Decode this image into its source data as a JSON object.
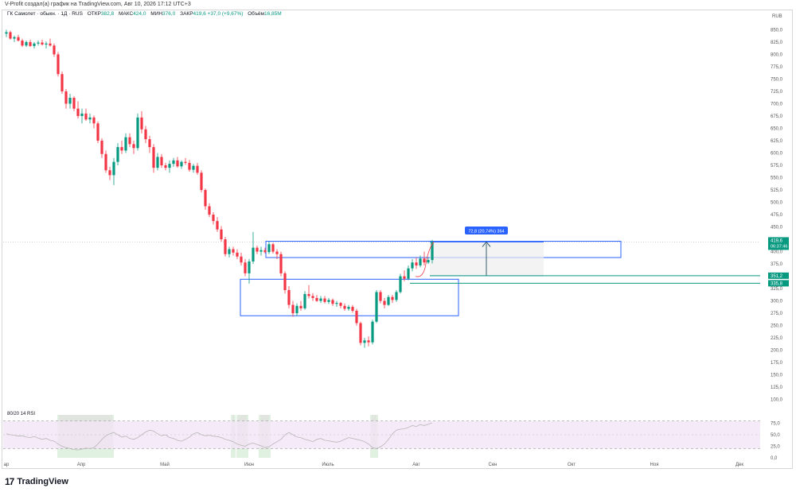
{
  "header": {
    "caption": "V-Profit создал(а) график на TradingView.com, Авг 10, 2026 17:12 UTC+3"
  },
  "legend": {
    "symbol": "ГК Самолет · обыкн. · 1Д · RUS",
    "open_label": "ОТКР",
    "open_value": "382,8",
    "high_label": "МАКС",
    "high_value": "424,0",
    "low_label": "МИН",
    "low_value": "376,0",
    "close_label": "ЗАКР",
    "close_value": "419,6",
    "change": "+37,0 (+9,67%)",
    "volume_label": "Объём",
    "volume_value": "16,85M"
  },
  "rsi": {
    "label": "80/20 14 RSI"
  },
  "branding": {
    "logo_text": "TradingView",
    "logo_mark": "17"
  },
  "colors": {
    "up": "#089981",
    "down": "#f23645",
    "box": "#2962ff",
    "level": "#089981",
    "rsi_band": "#f3e5f5",
    "rsi_line": "#b7b7b7",
    "highlight": "#c8e6c9",
    "ghost": "#e0e0e0"
  },
  "chart_data": {
    "type": "candlestick",
    "currency": "RUB",
    "y_ticks": [
      "850,0",
      "825,0",
      "800,0",
      "775,0",
      "750,0",
      "725,0",
      "700,0",
      "675,0",
      "650,0",
      "625,0",
      "600,0",
      "575,0",
      "550,0",
      "525,0",
      "500,0",
      "475,0",
      "450,0",
      "425,0",
      "400,0",
      "375,0",
      "350,0",
      "325,0",
      "300,0",
      "275,0",
      "250,0",
      "225,0",
      "200,0",
      "175,0",
      "150,0",
      "125,0",
      "100,0"
    ],
    "ylim": [
      85,
      870
    ],
    "x_labels": [
      "ар",
      "Апр",
      "Май",
      "Июн",
      "Июль",
      "Авг",
      "Сен",
      "Окт",
      "Ноя",
      "Дек"
    ],
    "price_labels": [
      {
        "value": 419.6,
        "text": "419,6",
        "sub": "06:37:46",
        "color": "#089981"
      },
      {
        "value": 351.2,
        "text": "351,2",
        "color": "#089981"
      },
      {
        "value": 335.8,
        "text": "335,8",
        "color": "#089981"
      }
    ],
    "measure_label": "72,8 (20,74%) 364",
    "rsi": {
      "ylim": [
        0,
        100
      ],
      "ticks": [
        "75,0",
        "50,0",
        "25,0",
        "0,0"
      ],
      "band": [
        20,
        80
      ],
      "values": [
        52,
        50,
        49,
        47,
        48,
        45,
        44,
        46,
        43,
        40,
        42,
        38,
        36,
        30,
        25,
        22,
        20,
        18,
        17,
        19,
        21,
        20,
        22,
        30,
        40,
        48,
        52,
        55,
        50,
        45,
        47,
        42,
        40,
        44,
        50,
        56,
        60,
        58,
        52,
        48,
        50,
        44,
        42,
        38,
        36,
        40,
        45,
        52,
        55,
        50,
        48,
        49,
        47,
        46,
        44,
        40,
        38,
        35,
        30,
        27,
        25,
        30,
        32,
        29,
        26,
        22,
        24,
        30,
        35,
        40,
        50,
        55,
        50,
        45,
        44,
        40,
        38,
        35,
        40,
        42,
        38,
        37,
        35,
        34,
        36,
        40,
        44,
        42,
        40,
        38,
        35,
        30,
        22,
        20,
        24,
        30,
        40,
        52,
        60,
        62,
        63,
        66,
        70,
        68,
        72,
        70,
        73,
        76
      ]
    },
    "series": [
      {
        "o": 842,
        "h": 850,
        "l": 835,
        "c": 845
      },
      {
        "o": 845,
        "h": 848,
        "l": 830,
        "c": 832
      },
      {
        "o": 832,
        "h": 838,
        "l": 825,
        "c": 835
      },
      {
        "o": 835,
        "h": 840,
        "l": 826,
        "c": 828
      },
      {
        "o": 828,
        "h": 832,
        "l": 815,
        "c": 818
      },
      {
        "o": 818,
        "h": 828,
        "l": 815,
        "c": 825
      },
      {
        "o": 825,
        "h": 830,
        "l": 815,
        "c": 817
      },
      {
        "o": 817,
        "h": 825,
        "l": 812,
        "c": 822
      },
      {
        "o": 822,
        "h": 828,
        "l": 818,
        "c": 824
      },
      {
        "o": 824,
        "h": 830,
        "l": 818,
        "c": 820
      },
      {
        "o": 820,
        "h": 826,
        "l": 812,
        "c": 822
      },
      {
        "o": 822,
        "h": 832,
        "l": 816,
        "c": 818
      },
      {
        "o": 818,
        "h": 822,
        "l": 795,
        "c": 800
      },
      {
        "o": 800,
        "h": 805,
        "l": 755,
        "c": 760
      },
      {
        "o": 760,
        "h": 765,
        "l": 720,
        "c": 725
      },
      {
        "o": 725,
        "h": 730,
        "l": 690,
        "c": 700
      },
      {
        "o": 700,
        "h": 720,
        "l": 690,
        "c": 712
      },
      {
        "o": 712,
        "h": 715,
        "l": 685,
        "c": 690
      },
      {
        "o": 690,
        "h": 705,
        "l": 670,
        "c": 675
      },
      {
        "o": 675,
        "h": 690,
        "l": 660,
        "c": 680
      },
      {
        "o": 680,
        "h": 690,
        "l": 665,
        "c": 668
      },
      {
        "o": 668,
        "h": 680,
        "l": 660,
        "c": 672
      },
      {
        "o": 672,
        "h": 676,
        "l": 650,
        "c": 660
      },
      {
        "o": 660,
        "h": 664,
        "l": 620,
        "c": 625
      },
      {
        "o": 625,
        "h": 630,
        "l": 590,
        "c": 598
      },
      {
        "o": 598,
        "h": 605,
        "l": 560,
        "c": 565
      },
      {
        "o": 565,
        "h": 572,
        "l": 545,
        "c": 555
      },
      {
        "o": 555,
        "h": 590,
        "l": 535,
        "c": 582
      },
      {
        "o": 582,
        "h": 620,
        "l": 575,
        "c": 612
      },
      {
        "o": 612,
        "h": 625,
        "l": 598,
        "c": 605
      },
      {
        "o": 605,
        "h": 640,
        "l": 600,
        "c": 632
      },
      {
        "o": 632,
        "h": 640,
        "l": 612,
        "c": 618
      },
      {
        "o": 618,
        "h": 625,
        "l": 598,
        "c": 610
      },
      {
        "o": 610,
        "h": 680,
        "l": 605,
        "c": 672
      },
      {
        "o": 672,
        "h": 685,
        "l": 640,
        "c": 648
      },
      {
        "o": 648,
        "h": 655,
        "l": 620,
        "c": 628
      },
      {
        "o": 628,
        "h": 635,
        "l": 600,
        "c": 612
      },
      {
        "o": 612,
        "h": 618,
        "l": 560,
        "c": 570
      },
      {
        "o": 570,
        "h": 600,
        "l": 565,
        "c": 592
      },
      {
        "o": 592,
        "h": 598,
        "l": 570,
        "c": 575
      },
      {
        "o": 575,
        "h": 580,
        "l": 565,
        "c": 570
      },
      {
        "o": 570,
        "h": 585,
        "l": 560,
        "c": 578
      },
      {
        "o": 578,
        "h": 590,
        "l": 572,
        "c": 585
      },
      {
        "o": 585,
        "h": 592,
        "l": 570,
        "c": 573
      },
      {
        "o": 573,
        "h": 585,
        "l": 568,
        "c": 582
      },
      {
        "o": 582,
        "h": 590,
        "l": 576,
        "c": 580
      },
      {
        "o": 580,
        "h": 586,
        "l": 562,
        "c": 566
      },
      {
        "o": 566,
        "h": 578,
        "l": 560,
        "c": 574
      },
      {
        "o": 574,
        "h": 580,
        "l": 556,
        "c": 560
      },
      {
        "o": 560,
        "h": 565,
        "l": 520,
        "c": 525
      },
      {
        "o": 525,
        "h": 528,
        "l": 485,
        "c": 492
      },
      {
        "o": 492,
        "h": 498,
        "l": 470,
        "c": 475
      },
      {
        "o": 475,
        "h": 480,
        "l": 455,
        "c": 462
      },
      {
        "o": 462,
        "h": 470,
        "l": 440,
        "c": 445
      },
      {
        "o": 445,
        "h": 452,
        "l": 420,
        "c": 425
      },
      {
        "o": 425,
        "h": 430,
        "l": 390,
        "c": 395
      },
      {
        "o": 395,
        "h": 410,
        "l": 388,
        "c": 405
      },
      {
        "o": 405,
        "h": 410,
        "l": 392,
        "c": 398
      },
      {
        "o": 398,
        "h": 405,
        "l": 385,
        "c": 390
      },
      {
        "o": 390,
        "h": 398,
        "l": 372,
        "c": 378
      },
      {
        "o": 378,
        "h": 385,
        "l": 350,
        "c": 356
      },
      {
        "o": 356,
        "h": 385,
        "l": 335,
        "c": 380
      },
      {
        "o": 380,
        "h": 440,
        "l": 375,
        "c": 408
      },
      {
        "o": 408,
        "h": 412,
        "l": 395,
        "c": 400
      },
      {
        "o": 400,
        "h": 410,
        "l": 392,
        "c": 403
      },
      {
        "o": 403,
        "h": 408,
        "l": 396,
        "c": 399
      },
      {
        "o": 399,
        "h": 420,
        "l": 395,
        "c": 415
      },
      {
        "o": 415,
        "h": 418,
        "l": 396,
        "c": 400
      },
      {
        "o": 400,
        "h": 405,
        "l": 385,
        "c": 395
      },
      {
        "o": 395,
        "h": 400,
        "l": 350,
        "c": 356
      },
      {
        "o": 356,
        "h": 360,
        "l": 315,
        "c": 322
      },
      {
        "o": 322,
        "h": 330,
        "l": 285,
        "c": 292
      },
      {
        "o": 292,
        "h": 300,
        "l": 268,
        "c": 275
      },
      {
        "o": 275,
        "h": 295,
        "l": 270,
        "c": 290
      },
      {
        "o": 290,
        "h": 300,
        "l": 280,
        "c": 285
      },
      {
        "o": 285,
        "h": 320,
        "l": 282,
        "c": 314
      },
      {
        "o": 314,
        "h": 332,
        "l": 305,
        "c": 310
      },
      {
        "o": 310,
        "h": 316,
        "l": 300,
        "c": 306
      },
      {
        "o": 306,
        "h": 312,
        "l": 298,
        "c": 300
      },
      {
        "o": 300,
        "h": 310,
        "l": 296,
        "c": 305
      },
      {
        "o": 305,
        "h": 310,
        "l": 295,
        "c": 298
      },
      {
        "o": 298,
        "h": 306,
        "l": 294,
        "c": 302
      },
      {
        "o": 302,
        "h": 305,
        "l": 290,
        "c": 294
      },
      {
        "o": 294,
        "h": 300,
        "l": 288,
        "c": 296
      },
      {
        "o": 296,
        "h": 298,
        "l": 285,
        "c": 290
      },
      {
        "o": 290,
        "h": 295,
        "l": 280,
        "c": 284
      },
      {
        "o": 284,
        "h": 292,
        "l": 280,
        "c": 288
      },
      {
        "o": 288,
        "h": 292,
        "l": 276,
        "c": 280
      },
      {
        "o": 280,
        "h": 284,
        "l": 250,
        "c": 255
      },
      {
        "o": 255,
        "h": 258,
        "l": 210,
        "c": 215
      },
      {
        "o": 215,
        "h": 225,
        "l": 205,
        "c": 220
      },
      {
        "o": 220,
        "h": 228,
        "l": 208,
        "c": 216
      },
      {
        "o": 216,
        "h": 262,
        "l": 212,
        "c": 258
      },
      {
        "o": 258,
        "h": 322,
        "l": 255,
        "c": 318
      },
      {
        "o": 318,
        "h": 322,
        "l": 295,
        "c": 300
      },
      {
        "o": 300,
        "h": 306,
        "l": 285,
        "c": 292
      },
      {
        "o": 292,
        "h": 312,
        "l": 290,
        "c": 308
      },
      {
        "o": 308,
        "h": 312,
        "l": 296,
        "c": 302
      },
      {
        "o": 302,
        "h": 322,
        "l": 298,
        "c": 318
      },
      {
        "o": 318,
        "h": 355,
        "l": 315,
        "c": 350
      },
      {
        "o": 350,
        "h": 362,
        "l": 340,
        "c": 345
      },
      {
        "o": 345,
        "h": 372,
        "l": 342,
        "c": 366
      },
      {
        "o": 366,
        "h": 385,
        "l": 360,
        "c": 378
      },
      {
        "o": 378,
        "h": 388,
        "l": 365,
        "c": 372
      },
      {
        "o": 372,
        "h": 392,
        "l": 368,
        "c": 386
      },
      {
        "o": 386,
        "h": 400,
        "l": 372,
        "c": 378
      },
      {
        "o": 378,
        "h": 388,
        "l": 375,
        "c": 383
      },
      {
        "o": 383,
        "h": 424,
        "l": 376,
        "c": 420
      }
    ]
  }
}
